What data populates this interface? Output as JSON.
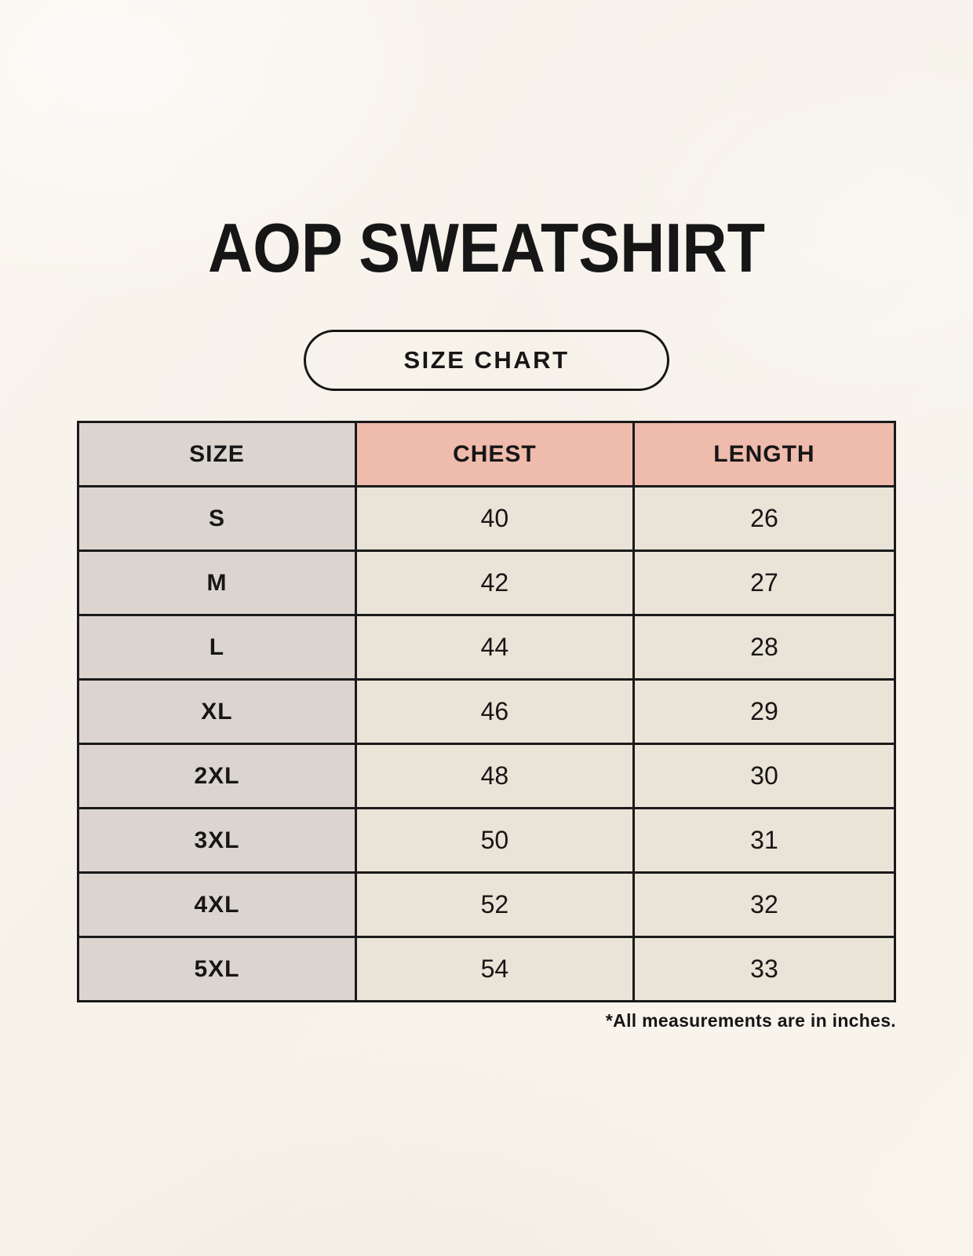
{
  "title": "AOP SWEATSHIRT",
  "badge": {
    "label": "SIZE CHART"
  },
  "footnote": "*All measurements are in inches.",
  "colors": {
    "background": "#F8F4EC",
    "accent_header": "#EFBBAC",
    "size_column": "#DCD5CF",
    "value_cell": "#EAE3D7",
    "border": "#1A1A1A",
    "text": "#161616"
  },
  "chart_data": {
    "type": "table",
    "title": "AOP SWEATSHIRT",
    "subtitle": "SIZE CHART",
    "columns": [
      "SIZE",
      "CHEST",
      "LENGTH"
    ],
    "rows": [
      [
        "S",
        40,
        26
      ],
      [
        "M",
        42,
        27
      ],
      [
        "L",
        44,
        28
      ],
      [
        "XL",
        46,
        29
      ],
      [
        "2XL",
        48,
        30
      ],
      [
        "3XL",
        50,
        31
      ],
      [
        "4XL",
        52,
        32
      ],
      [
        "5XL",
        54,
        33
      ]
    ],
    "units": "inches",
    "note": "*All measurements are in inches."
  }
}
